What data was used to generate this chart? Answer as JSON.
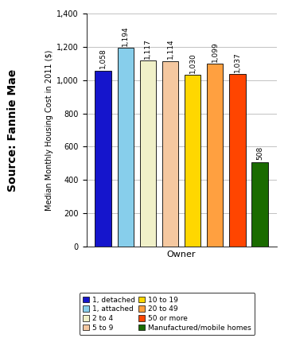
{
  "categories": [
    "1, detached",
    "1, attached",
    "2 to 4",
    "5 to 9",
    "10 to 19",
    "20 to 49",
    "50 or more",
    "Manufactured/mobile homes"
  ],
  "values": [
    1058,
    1194,
    1117,
    1114,
    1030,
    1099,
    1037,
    508
  ],
  "bar_colors": [
    "#1515CC",
    "#87CEEB",
    "#F0F0C8",
    "#F5C8A0",
    "#FFD700",
    "#FFA040",
    "#FF4500",
    "#1A6B00"
  ],
  "bar_edge_colors": [
    "#000000",
    "#000000",
    "#000000",
    "#000000",
    "#000000",
    "#000000",
    "#000000",
    "#000000"
  ],
  "ylabel": "Median Monthly Housing Cost in 2011 ($)",
  "xlabel": "Owner",
  "source_text": "Source: Fannie Mae",
  "ylim": [
    0,
    1400
  ],
  "yticks": [
    0,
    200,
    400,
    600,
    800,
    1000,
    1200,
    1400
  ],
  "value_labels": [
    "1,058",
    "1,194",
    "1,117",
    "1,114",
    "1,030",
    "1,099",
    "1,037",
    "508"
  ],
  "legend_left": [
    [
      "1, detached",
      "#1515CC"
    ],
    [
      "2 to 4",
      "#F0F0C8"
    ],
    [
      "10 to 19",
      "#FFD700"
    ],
    [
      "50 or more",
      "#FF4500"
    ]
  ],
  "legend_right": [
    [
      "1, attached",
      "#87CEEB"
    ],
    [
      "5 to 9",
      "#F5C8A0"
    ],
    [
      "20 to 49",
      "#FFA040"
    ],
    [
      "Manufactured/mobile homes",
      "#1A6B00"
    ]
  ],
  "background_color": "#FFFFFF",
  "axis_fontsize": 7,
  "bar_fontsize": 6.5,
  "legend_fontsize": 6.5,
  "source_fontsize": 10
}
